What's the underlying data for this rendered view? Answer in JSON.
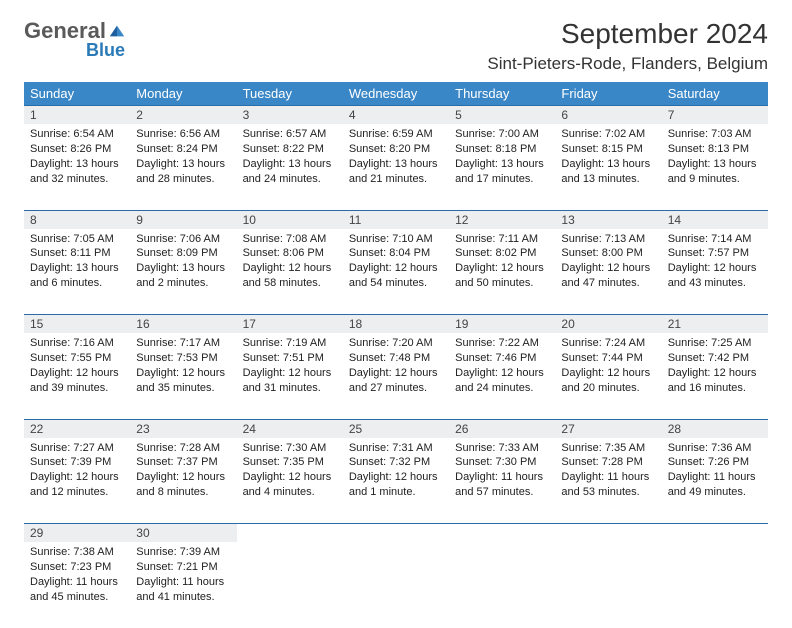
{
  "logo": {
    "brand1": "General",
    "brand2": "Blue"
  },
  "header": {
    "title": "September 2024",
    "location": "Sint-Pieters-Rode, Flanders, Belgium"
  },
  "colors": {
    "header_bg": "#3a87c7",
    "daynum_bg": "#eceef0",
    "rule": "#2a6ca5",
    "logo_blue": "#2a7ab8"
  },
  "weekdays": [
    "Sunday",
    "Monday",
    "Tuesday",
    "Wednesday",
    "Thursday",
    "Friday",
    "Saturday"
  ],
  "weeks": [
    {
      "nums": [
        "1",
        "2",
        "3",
        "4",
        "5",
        "6",
        "7"
      ],
      "cells": [
        {
          "sunrise": "Sunrise: 6:54 AM",
          "sunset": "Sunset: 8:26 PM",
          "day1": "Daylight: 13 hours",
          "day2": "and 32 minutes."
        },
        {
          "sunrise": "Sunrise: 6:56 AM",
          "sunset": "Sunset: 8:24 PM",
          "day1": "Daylight: 13 hours",
          "day2": "and 28 minutes."
        },
        {
          "sunrise": "Sunrise: 6:57 AM",
          "sunset": "Sunset: 8:22 PM",
          "day1": "Daylight: 13 hours",
          "day2": "and 24 minutes."
        },
        {
          "sunrise": "Sunrise: 6:59 AM",
          "sunset": "Sunset: 8:20 PM",
          "day1": "Daylight: 13 hours",
          "day2": "and 21 minutes."
        },
        {
          "sunrise": "Sunrise: 7:00 AM",
          "sunset": "Sunset: 8:18 PM",
          "day1": "Daylight: 13 hours",
          "day2": "and 17 minutes."
        },
        {
          "sunrise": "Sunrise: 7:02 AM",
          "sunset": "Sunset: 8:15 PM",
          "day1": "Daylight: 13 hours",
          "day2": "and 13 minutes."
        },
        {
          "sunrise": "Sunrise: 7:03 AM",
          "sunset": "Sunset: 8:13 PM",
          "day1": "Daylight: 13 hours",
          "day2": "and 9 minutes."
        }
      ]
    },
    {
      "nums": [
        "8",
        "9",
        "10",
        "11",
        "12",
        "13",
        "14"
      ],
      "cells": [
        {
          "sunrise": "Sunrise: 7:05 AM",
          "sunset": "Sunset: 8:11 PM",
          "day1": "Daylight: 13 hours",
          "day2": "and 6 minutes."
        },
        {
          "sunrise": "Sunrise: 7:06 AM",
          "sunset": "Sunset: 8:09 PM",
          "day1": "Daylight: 13 hours",
          "day2": "and 2 minutes."
        },
        {
          "sunrise": "Sunrise: 7:08 AM",
          "sunset": "Sunset: 8:06 PM",
          "day1": "Daylight: 12 hours",
          "day2": "and 58 minutes."
        },
        {
          "sunrise": "Sunrise: 7:10 AM",
          "sunset": "Sunset: 8:04 PM",
          "day1": "Daylight: 12 hours",
          "day2": "and 54 minutes."
        },
        {
          "sunrise": "Sunrise: 7:11 AM",
          "sunset": "Sunset: 8:02 PM",
          "day1": "Daylight: 12 hours",
          "day2": "and 50 minutes."
        },
        {
          "sunrise": "Sunrise: 7:13 AM",
          "sunset": "Sunset: 8:00 PM",
          "day1": "Daylight: 12 hours",
          "day2": "and 47 minutes."
        },
        {
          "sunrise": "Sunrise: 7:14 AM",
          "sunset": "Sunset: 7:57 PM",
          "day1": "Daylight: 12 hours",
          "day2": "and 43 minutes."
        }
      ]
    },
    {
      "nums": [
        "15",
        "16",
        "17",
        "18",
        "19",
        "20",
        "21"
      ],
      "cells": [
        {
          "sunrise": "Sunrise: 7:16 AM",
          "sunset": "Sunset: 7:55 PM",
          "day1": "Daylight: 12 hours",
          "day2": "and 39 minutes."
        },
        {
          "sunrise": "Sunrise: 7:17 AM",
          "sunset": "Sunset: 7:53 PM",
          "day1": "Daylight: 12 hours",
          "day2": "and 35 minutes."
        },
        {
          "sunrise": "Sunrise: 7:19 AM",
          "sunset": "Sunset: 7:51 PM",
          "day1": "Daylight: 12 hours",
          "day2": "and 31 minutes."
        },
        {
          "sunrise": "Sunrise: 7:20 AM",
          "sunset": "Sunset: 7:48 PM",
          "day1": "Daylight: 12 hours",
          "day2": "and 27 minutes."
        },
        {
          "sunrise": "Sunrise: 7:22 AM",
          "sunset": "Sunset: 7:46 PM",
          "day1": "Daylight: 12 hours",
          "day2": "and 24 minutes."
        },
        {
          "sunrise": "Sunrise: 7:24 AM",
          "sunset": "Sunset: 7:44 PM",
          "day1": "Daylight: 12 hours",
          "day2": "and 20 minutes."
        },
        {
          "sunrise": "Sunrise: 7:25 AM",
          "sunset": "Sunset: 7:42 PM",
          "day1": "Daylight: 12 hours",
          "day2": "and 16 minutes."
        }
      ]
    },
    {
      "nums": [
        "22",
        "23",
        "24",
        "25",
        "26",
        "27",
        "28"
      ],
      "cells": [
        {
          "sunrise": "Sunrise: 7:27 AM",
          "sunset": "Sunset: 7:39 PM",
          "day1": "Daylight: 12 hours",
          "day2": "and 12 minutes."
        },
        {
          "sunrise": "Sunrise: 7:28 AM",
          "sunset": "Sunset: 7:37 PM",
          "day1": "Daylight: 12 hours",
          "day2": "and 8 minutes."
        },
        {
          "sunrise": "Sunrise: 7:30 AM",
          "sunset": "Sunset: 7:35 PM",
          "day1": "Daylight: 12 hours",
          "day2": "and 4 minutes."
        },
        {
          "sunrise": "Sunrise: 7:31 AM",
          "sunset": "Sunset: 7:32 PM",
          "day1": "Daylight: 12 hours",
          "day2": "and 1 minute."
        },
        {
          "sunrise": "Sunrise: 7:33 AM",
          "sunset": "Sunset: 7:30 PM",
          "day1": "Daylight: 11 hours",
          "day2": "and 57 minutes."
        },
        {
          "sunrise": "Sunrise: 7:35 AM",
          "sunset": "Sunset: 7:28 PM",
          "day1": "Daylight: 11 hours",
          "day2": "and 53 minutes."
        },
        {
          "sunrise": "Sunrise: 7:36 AM",
          "sunset": "Sunset: 7:26 PM",
          "day1": "Daylight: 11 hours",
          "day2": "and 49 minutes."
        }
      ]
    },
    {
      "nums": [
        "29",
        "30",
        "",
        "",
        "",
        "",
        ""
      ],
      "cells": [
        {
          "sunrise": "Sunrise: 7:38 AM",
          "sunset": "Sunset: 7:23 PM",
          "day1": "Daylight: 11 hours",
          "day2": "and 45 minutes."
        },
        {
          "sunrise": "Sunrise: 7:39 AM",
          "sunset": "Sunset: 7:21 PM",
          "day1": "Daylight: 11 hours",
          "day2": "and 41 minutes."
        },
        {
          "sunrise": "",
          "sunset": "",
          "day1": "",
          "day2": ""
        },
        {
          "sunrise": "",
          "sunset": "",
          "day1": "",
          "day2": ""
        },
        {
          "sunrise": "",
          "sunset": "",
          "day1": "",
          "day2": ""
        },
        {
          "sunrise": "",
          "sunset": "",
          "day1": "",
          "day2": ""
        },
        {
          "sunrise": "",
          "sunset": "",
          "day1": "",
          "day2": ""
        }
      ]
    }
  ]
}
